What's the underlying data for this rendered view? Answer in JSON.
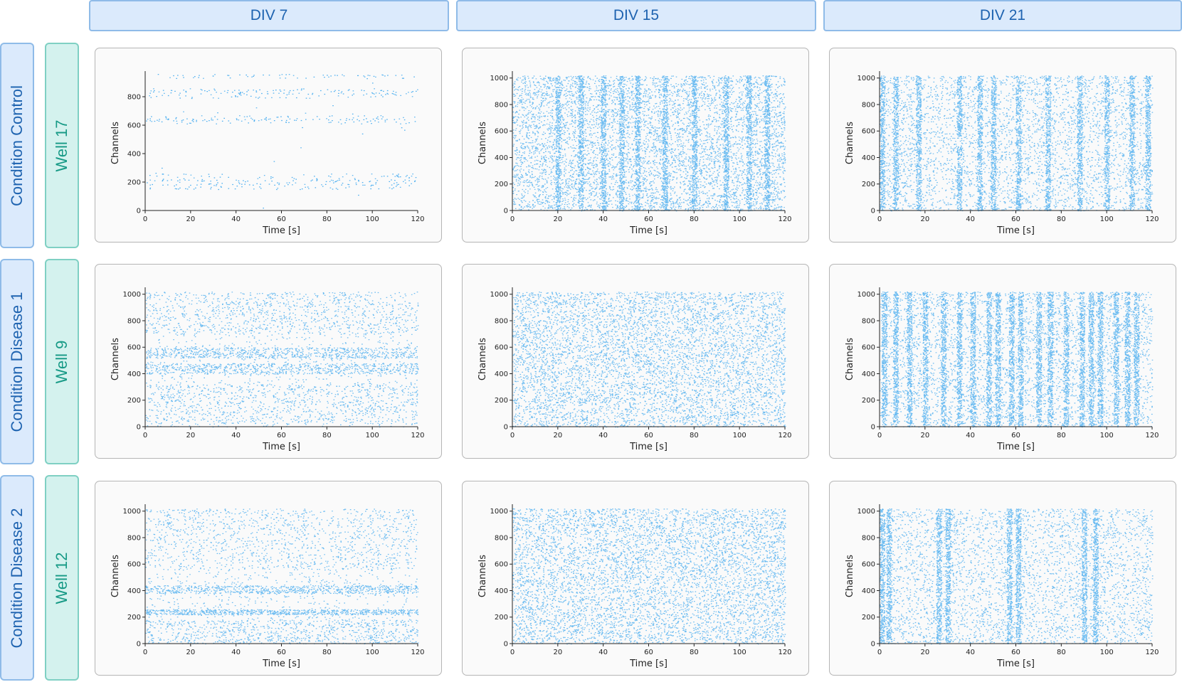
{
  "columns": [
    {
      "label": "DIV 7"
    },
    {
      "label": "DIV 15"
    },
    {
      "label": "DIV 21"
    }
  ],
  "rows": [
    {
      "condition": "Condition Control",
      "well": "Well 17"
    },
    {
      "condition": "Condition Disease 1",
      "well": "Well 9"
    },
    {
      "condition": "Condition Disease 2",
      "well": "Well 12"
    }
  ],
  "colors": {
    "spike": "#3aa6ee",
    "header_bg": "#dbeafc",
    "header_border": "#8fbbe8",
    "header_text": "#1e63b0",
    "well_bg": "#d4f2ee",
    "well_border": "#7fd0c3",
    "well_text": "#179a86"
  },
  "chart_data": [
    {
      "type": "scatter",
      "row": 0,
      "col": 0,
      "title": "",
      "xlabel": "Time [s]",
      "ylabel": "Channels",
      "xlim": [
        0,
        120
      ],
      "ylim": [
        0,
        950
      ],
      "xticks": [
        "0",
        "20",
        "40",
        "60",
        "80",
        "100",
        "120"
      ],
      "yticks": [
        "0",
        "200",
        "400",
        "600",
        "800"
      ],
      "pattern": "sparse",
      "active_channel_bands": [
        [
          150,
          260
        ],
        [
          610,
          670
        ],
        [
          790,
          860
        ],
        [
          930,
          960
        ]
      ]
    },
    {
      "type": "scatter",
      "row": 0,
      "col": 1,
      "title": "",
      "xlabel": "Time [s]",
      "ylabel": "Channels",
      "xlim": [
        0,
        120
      ],
      "ylim": [
        0,
        1020
      ],
      "xticks": [
        "0",
        "20",
        "40",
        "60",
        "80",
        "100",
        "120"
      ],
      "yticks": [
        "0",
        "200",
        "400",
        "600",
        "800",
        "1000"
      ],
      "pattern": "dense",
      "burst_times_s": [
        20,
        30,
        40,
        48,
        55,
        67,
        80,
        94,
        104,
        112
      ]
    },
    {
      "type": "scatter",
      "row": 0,
      "col": 2,
      "title": "",
      "xlabel": "Time [s]",
      "ylabel": "Channels",
      "xlim": [
        0,
        120
      ],
      "ylim": [
        0,
        1020
      ],
      "xticks": [
        "0",
        "20",
        "40",
        "60",
        "80",
        "100",
        "120"
      ],
      "yticks": [
        "0",
        "200",
        "400",
        "600",
        "800",
        "1000"
      ],
      "pattern": "bursting",
      "burst_times_s": [
        1,
        7,
        17,
        35,
        44,
        50,
        61,
        74,
        88,
        100,
        111,
        118
      ]
    },
    {
      "type": "scatter",
      "row": 1,
      "col": 0,
      "title": "",
      "xlabel": "Time [s]",
      "ylabel": "Channels",
      "xlim": [
        0,
        120
      ],
      "ylim": [
        0,
        1020
      ],
      "xticks": [
        "0",
        "20",
        "40",
        "60",
        "80",
        "100",
        "120"
      ],
      "yticks": [
        "0",
        "200",
        "400",
        "600",
        "800",
        "1000"
      ],
      "pattern": "moderate",
      "active_channel_bands": [
        [
          20,
          320
        ],
        [
          400,
          480
        ],
        [
          520,
          600
        ],
        [
          700,
          1020
        ]
      ]
    },
    {
      "type": "scatter",
      "row": 1,
      "col": 1,
      "title": "",
      "xlabel": "Time [s]",
      "ylabel": "Channels",
      "xlim": [
        0,
        120
      ],
      "ylim": [
        0,
        1020
      ],
      "xticks": [
        "0",
        "20",
        "40",
        "60",
        "80",
        "100",
        "120"
      ],
      "yticks": [
        "0",
        "200",
        "400",
        "600",
        "800",
        "1000"
      ],
      "pattern": "dense"
    },
    {
      "type": "scatter",
      "row": 1,
      "col": 2,
      "title": "",
      "xlabel": "Time [s]",
      "ylabel": "Channels",
      "xlim": [
        0,
        120
      ],
      "ylim": [
        0,
        1020
      ],
      "xticks": [
        "0",
        "20",
        "40",
        "60",
        "80",
        "100",
        "120"
      ],
      "yticks": [
        "0",
        "200",
        "400",
        "600",
        "800",
        "1000"
      ],
      "pattern": "bursting",
      "burst_times_s": [
        2,
        7,
        13,
        20,
        28,
        35,
        41,
        48,
        52,
        58,
        62,
        70,
        75,
        82,
        89,
        93,
        97,
        104,
        109,
        113
      ]
    },
    {
      "type": "scatter",
      "row": 2,
      "col": 0,
      "title": "",
      "xlabel": "Time [s]",
      "ylabel": "Channels",
      "xlim": [
        0,
        120
      ],
      "ylim": [
        0,
        1020
      ],
      "xticks": [
        "0",
        "20",
        "40",
        "60",
        "80",
        "100",
        "120"
      ],
      "yticks": [
        "0",
        "200",
        "400",
        "600",
        "800",
        "1000"
      ],
      "pattern": "moderate",
      "active_channel_bands": [
        [
          0,
          180
        ],
        [
          220,
          260
        ],
        [
          380,
          440
        ],
        [
          560,
          1020
        ]
      ]
    },
    {
      "type": "scatter",
      "row": 2,
      "col": 1,
      "title": "",
      "xlabel": "Time [s]",
      "ylabel": "Channels",
      "xlim": [
        0,
        120
      ],
      "ylim": [
        0,
        1020
      ],
      "xticks": [
        "0",
        "20",
        "40",
        "60",
        "80",
        "100",
        "120"
      ],
      "yticks": [
        "0",
        "200",
        "400",
        "600",
        "800",
        "1000"
      ],
      "pattern": "dense"
    },
    {
      "type": "scatter",
      "row": 2,
      "col": 2,
      "title": "",
      "xlabel": "Time [s]",
      "ylabel": "Channels",
      "xlim": [
        0,
        120
      ],
      "ylim": [
        0,
        1020
      ],
      "xticks": [
        "0",
        "20",
        "40",
        "60",
        "80",
        "100",
        "120"
      ],
      "yticks": [
        "0",
        "200",
        "400",
        "600",
        "800",
        "1000"
      ],
      "pattern": "bursting",
      "burst_times_s": [
        1,
        4,
        26,
        30,
        57,
        61,
        90,
        95
      ]
    }
  ]
}
